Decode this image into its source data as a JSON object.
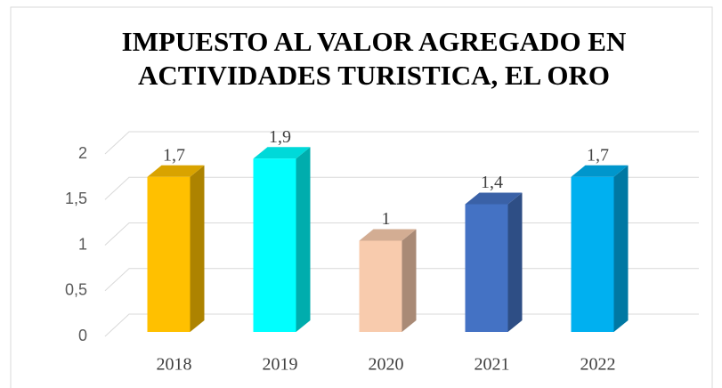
{
  "chart_data": {
    "type": "bar3d",
    "title": "IMPUESTO AL VALOR AGREGADO EN ACTIVIDADES TURISTICA, EL ORO",
    "categories": [
      "2018",
      "2019",
      "2020",
      "2021",
      "2022"
    ],
    "values": [
      1.7,
      1.9,
      1,
      1.4,
      1.7
    ],
    "value_labels": [
      "1,7",
      "1,9",
      "1",
      "1,4",
      "1,7"
    ],
    "colors": [
      "#FFC000",
      "#00FFFF",
      "#F8CBAD",
      "#4472C4",
      "#00B0F0"
    ],
    "ylim": [
      0,
      2
    ],
    "yticks": [
      0,
      {
        "value": 0.5,
        "label": "0,5"
      },
      1,
      {
        "value": 1.5,
        "label": "1,5"
      },
      2
    ],
    "grid": true
  }
}
